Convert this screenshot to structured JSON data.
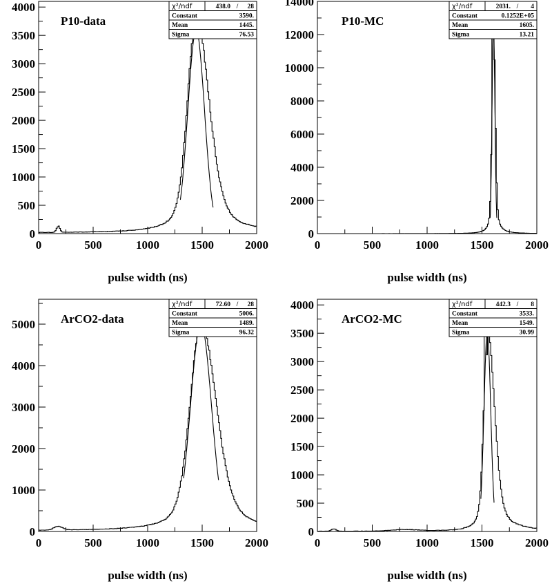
{
  "chart_data": [
    {
      "type": "histogram",
      "title": "P10-data",
      "xlabel": "pulse width (ns)",
      "xlim": [
        0,
        2000
      ],
      "ylim": [
        0,
        4100
      ],
      "xticks": [
        0,
        500,
        1000,
        1500,
        2000
      ],
      "yticks": [
        0,
        500,
        1000,
        1500,
        2000,
        2500,
        3000,
        3500,
        4000
      ],
      "stats": {
        "chi2ndf": "438.0",
        "ndf": "28",
        "constant": "3590.",
        "mean": "1445.",
        "sigma": "76.53"
      },
      "fit": {
        "constant": 3590,
        "mean": 1445,
        "sigma": 76.53,
        "range": [
          1300,
          1600
        ]
      },
      "peak": {
        "mean": 1445,
        "sigma": 76.53,
        "height": 3800,
        "tail_scale": 1.5
      },
      "bumps": [
        {
          "center": 180,
          "width": 15,
          "height": 110
        }
      ],
      "baseline": 12,
      "spikes": [
        {
          "x": 1440,
          "y": 3880
        }
      ]
    },
    {
      "type": "histogram",
      "title": "P10-MC",
      "xlabel": "pulse width (ns)",
      "xlim": [
        0,
        2000
      ],
      "ylim": [
        0,
        14000
      ],
      "xticks": [
        0,
        500,
        1000,
        1500,
        2000
      ],
      "yticks": [
        0,
        2000,
        4000,
        6000,
        8000,
        10000,
        12000,
        14000
      ],
      "stats": {
        "chi2ndf": "2031.",
        "ndf": "4",
        "constant": "0.1252E+05",
        "mean": "1605.",
        "sigma": "13.21"
      },
      "fit": {
        "constant": 12520,
        "mean": 1605,
        "sigma": 13.21,
        "range": [
          1575,
          1635
        ]
      },
      "peak": {
        "mean": 1605,
        "sigma": 13.21,
        "height": 12600,
        "tail_scale": 1.2
      },
      "bumps": [],
      "baseline": 0,
      "spikes": [
        {
          "x": 1600,
          "y": 12700
        }
      ]
    },
    {
      "type": "histogram",
      "title": "ArCO2-data",
      "xlabel": "pulse width (ns)",
      "xlim": [
        0,
        2000
      ],
      "ylim": [
        0,
        5600
      ],
      "xticks": [
        0,
        500,
        1000,
        1500,
        2000
      ],
      "yticks": [
        0,
        1000,
        2000,
        3000,
        4000,
        5000
      ],
      "stats": {
        "chi2ndf": "72.60",
        "ndf": "28",
        "constant": "5006.",
        "mean": "1489.",
        "sigma": "96.32"
      },
      "fit": {
        "constant": 5006,
        "mean": 1489,
        "sigma": 96.32,
        "range": [
          1330,
          1650
        ]
      },
      "peak": {
        "mean": 1489,
        "sigma": 96.32,
        "height": 5000,
        "tail_scale": 1.4
      },
      "bumps": [
        {
          "center": 180,
          "width": 40,
          "height": 90
        }
      ],
      "baseline": 15,
      "spikes": [
        {
          "x": 1480,
          "y": 5080
        },
        {
          "x": 1500,
          "y": 5060
        }
      ]
    },
    {
      "type": "histogram",
      "title": "ArCO2-MC",
      "xlabel": "pulse width (ns)",
      "xlim": [
        0,
        2000
      ],
      "ylim": [
        0,
        4100
      ],
      "xticks": [
        0,
        500,
        1000,
        1500,
        2000
      ],
      "yticks": [
        0,
        500,
        1000,
        1500,
        2000,
        2500,
        3000,
        3500,
        4000
      ],
      "stats": {
        "chi2ndf": "442.3",
        "ndf": "8",
        "constant": "3533.",
        "mean": "1549.",
        "sigma": "30.99"
      },
      "fit": {
        "constant": 3533,
        "mean": 1549,
        "sigma": 30.99,
        "range": [
          1490,
          1610
        ]
      },
      "peak": {
        "mean": 1549,
        "sigma": 30.99,
        "height": 3600,
        "tail_scale": 2.0
      },
      "bumps": [
        {
          "center": 150,
          "width": 20,
          "height": 40
        },
        {
          "center": 800,
          "width": 120,
          "height": 25
        }
      ],
      "baseline": 5,
      "spikes": [
        {
          "x": 1530,
          "y": 3780
        },
        {
          "x": 1545,
          "y": 3120
        }
      ]
    }
  ],
  "stat_labels": {
    "chi2": "χ²/ndf",
    "constant": "Constant",
    "mean": "Mean",
    "sigma": "Sigma"
  }
}
